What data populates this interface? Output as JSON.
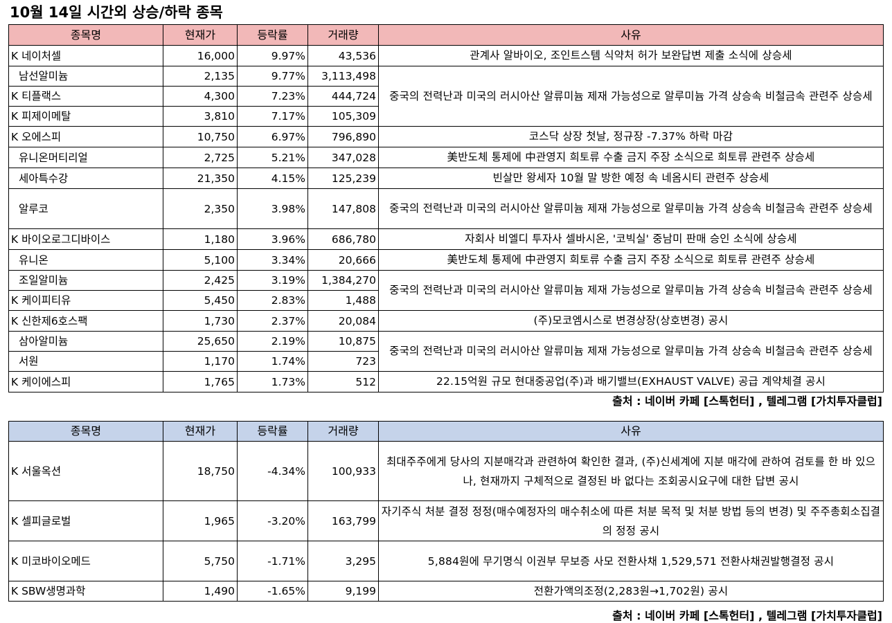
{
  "title": "10월 14일  시간외 상승/하락 종목",
  "headers": {
    "name": "종목명",
    "price": "현재가",
    "change": "등락률",
    "volume": "거래량",
    "reason": "사유"
  },
  "gainers": {
    "rows": [
      {
        "name": "K 네이처셀",
        "price": "16,000",
        "change": "9.97%",
        "volume": "43,536"
      },
      {
        "name": "남선알미늄",
        "price": "2,135",
        "change": "9.77%",
        "volume": "3,113,498"
      },
      {
        "name": "K 티플랙스",
        "price": "4,300",
        "change": "7.23%",
        "volume": "444,724"
      },
      {
        "name": "K 피제이메탈",
        "price": "3,810",
        "change": "7.17%",
        "volume": "105,309"
      },
      {
        "name": "K 오에스피",
        "price": "10,750",
        "change": "6.97%",
        "volume": "796,890"
      },
      {
        "name": "유니온머티리얼",
        "price": "2,725",
        "change": "5.21%",
        "volume": "347,028"
      },
      {
        "name": "세아특수강",
        "price": "21,350",
        "change": "4.15%",
        "volume": "125,239"
      },
      {
        "name": "알루코",
        "price": "2,350",
        "change": "3.98%",
        "volume": "147,808"
      },
      {
        "name": "K 바이오로그디바이스",
        "price": "1,180",
        "change": "3.96%",
        "volume": "686,780"
      },
      {
        "name": "유니온",
        "price": "5,100",
        "change": "3.34%",
        "volume": "20,666"
      },
      {
        "name": "조일알미늄",
        "price": "2,425",
        "change": "3.19%",
        "volume": "1,384,270"
      },
      {
        "name": "K 케이피티유",
        "price": "5,450",
        "change": "2.83%",
        "volume": "1,488"
      },
      {
        "name": "K 신한제6호스팩",
        "price": "1,730",
        "change": "2.37%",
        "volume": "20,084"
      },
      {
        "name": "삼아알미늄",
        "price": "25,650",
        "change": "2.19%",
        "volume": "10,875"
      },
      {
        "name": "서원",
        "price": "1,170",
        "change": "1.74%",
        "volume": "723"
      },
      {
        "name": "K 케이에스피",
        "price": "1,765",
        "change": "1.73%",
        "volume": "512"
      }
    ],
    "reasons": [
      "관계사 알바이오, 조인트스템 식약처 허가 보완답변 제출 소식에 상승세",
      "중국의 전력난과 미국의 러시아산 알류미늄 제재 가능성으로 알루미늄 가격 상승속 비철금속 관련주 상승세",
      "코스닥 상장 첫날, 정규장 -7.37% 하락 마감",
      "美반도체 통제에 中관영지 희토류 수출 금지 주장 소식으로 희토류 관련주 상승세",
      "빈살만 왕세자 10월 말 방한 예정 속 네옴시티 관련주 상승세",
      "중국의 전력난과 미국의 러시아산 알류미늄 제재 가능성으로 알루미늄 가격 상승속 비철금속 관련주 상승세",
      "자회사 비엘디 투자사 셀바시온, '코빅실' 중남미 판매 승인 소식에 상승세",
      "美반도체 통제에 中관영지 희토류 수출 금지 주장 소식으로 희토류 관련주 상승세",
      "중국의 전력난과 미국의 러시아산 알류미늄 제재 가능성으로 알루미늄 가격 상승속 비철금속 관련주 상승세",
      "(주)모코엠시스로 변경상장(상호변경) 공시",
      "중국의 전력난과 미국의 러시아산 알류미늄 제재 가능성으로 알루미늄 가격 상승속 비철금속 관련주 상승세",
      "22.15억원 규모 현대중공업(주)과 배기밸브(EXHAUST VALVE) 공급 계약체결 공시"
    ],
    "source": "출처 : 네이버 카페 [스톡헌터] , 텔레그램 [가치투자클럽]"
  },
  "losers": {
    "rows": [
      {
        "name": "K 서울옥션",
        "price": "18,750",
        "change": "-4.34%",
        "volume": "100,933",
        "reason": "최대주주에게 당사의 지분매각과 관련하여 확인한 결과, (주)신세계에 지분 매각에 관하여 검토를 한 바 있으나, 현재까지 구체적으로 결정된 바 없다는 조회공시요구에 대한 답변 공시"
      },
      {
        "name": "K 셀피글로벌",
        "price": "1,965",
        "change": "-3.20%",
        "volume": "163,799",
        "reason": "자기주식 처분 결정 정정(매수예정자의 매수취소에 따른 처분 목적 및 처분 방법 등의 변경) 및 주주총회소집결의 정정 공시"
      },
      {
        "name": "K 미코바이오메드",
        "price": "5,750",
        "change": "-1.71%",
        "volume": "3,295",
        "reason": "5,884원에 무기명식 이권부 무보증 사모 전환사채 1,529,571 전환사채권발행결정 공시"
      },
      {
        "name": "K SBW생명과학",
        "price": "1,490",
        "change": "-1.65%",
        "volume": "9,199",
        "reason": "전환가액의조정(2,283원→1,702원) 공시"
      }
    ],
    "source": "출처 : 네이버 카페 [스톡헌터] , 텔레그램 [가치투자클럽]"
  }
}
